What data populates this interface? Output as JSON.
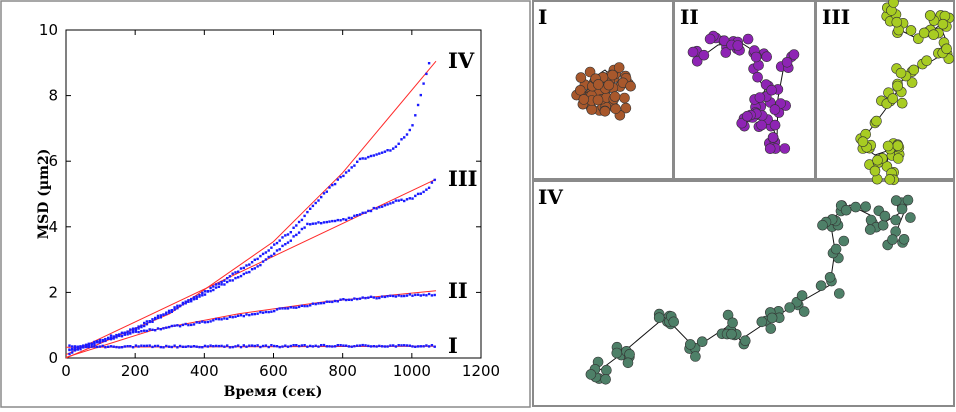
{
  "chart_data": {
    "type": "scatter",
    "title": "",
    "xlabel": "Время (сек)",
    "ylabel": "MSD (µm2)",
    "xlim": [
      0,
      1200
    ],
    "ylim": [
      0,
      10
    ],
    "x_ticks": [
      0,
      200,
      400,
      600,
      800,
      1000,
      1200
    ],
    "y_ticks": [
      0,
      2,
      4,
      6,
      8,
      10
    ],
    "x_tick_labels": [
      "0",
      "200",
      "400",
      "600",
      "800",
      "1000",
      "1200"
    ],
    "y_tick_labels": [
      "0",
      "2",
      "4",
      "6",
      "8",
      "10"
    ],
    "grid": false,
    "point_color": "#1a1aff",
    "fit_color": "#ff2a2a",
    "series": [
      {
        "name": "I",
        "knots": [
          [
            0,
            0.35
          ],
          [
            300,
            0.35
          ],
          [
            600,
            0.36
          ],
          [
            900,
            0.37
          ],
          [
            1070,
            0.36
          ]
        ],
        "fit": [
          [
            0,
            0.33
          ],
          [
            1070,
            0.36
          ]
        ]
      },
      {
        "name": "II",
        "knots": [
          [
            0,
            0.1
          ],
          [
            100,
            0.5
          ],
          [
            200,
            0.78
          ],
          [
            400,
            1.1
          ],
          [
            600,
            1.45
          ],
          [
            800,
            1.78
          ],
          [
            1000,
            1.92
          ],
          [
            1070,
            1.93
          ]
        ],
        "fit": [
          [
            0,
            0.02
          ],
          [
            250,
            0.85
          ],
          [
            500,
            1.35
          ],
          [
            750,
            1.72
          ],
          [
            1070,
            2.05
          ]
        ]
      },
      {
        "name": "III",
        "knots": [
          [
            0,
            0.2
          ],
          [
            200,
            0.85
          ],
          [
            400,
            1.95
          ],
          [
            550,
            2.75
          ],
          [
            650,
            3.6
          ],
          [
            700,
            4.1
          ],
          [
            800,
            4.2
          ],
          [
            880,
            4.5
          ],
          [
            940,
            4.75
          ],
          [
            1000,
            4.85
          ],
          [
            1050,
            5.2
          ],
          [
            1070,
            5.5
          ]
        ],
        "fit": [
          [
            0,
            0.1
          ],
          [
            1070,
            5.45
          ]
        ]
      },
      {
        "name": "IV",
        "knots": [
          [
            0,
            0.2
          ],
          [
            200,
            0.9
          ],
          [
            400,
            2.0
          ],
          [
            550,
            3.0
          ],
          [
            650,
            3.85
          ],
          [
            750,
            5.05
          ],
          [
            850,
            6.05
          ],
          [
            900,
            6.2
          ],
          [
            950,
            6.4
          ],
          [
            1000,
            7.0
          ],
          [
            1020,
            7.8
          ],
          [
            1050,
            9.0
          ]
        ],
        "fit": [
          [
            0,
            0.0
          ],
          [
            300,
            1.35
          ],
          [
            600,
            3.55
          ],
          [
            800,
            5.65
          ],
          [
            1070,
            9.05
          ]
        ]
      }
    ]
  },
  "panels": {
    "I": {
      "label": "I",
      "color": "#a8582c"
    },
    "II": {
      "label": "II",
      "color": "#8e24b4"
    },
    "III": {
      "label": "III",
      "color": "#a8cc22"
    },
    "IV": {
      "label": "IV",
      "color": "#4e8068"
    }
  }
}
